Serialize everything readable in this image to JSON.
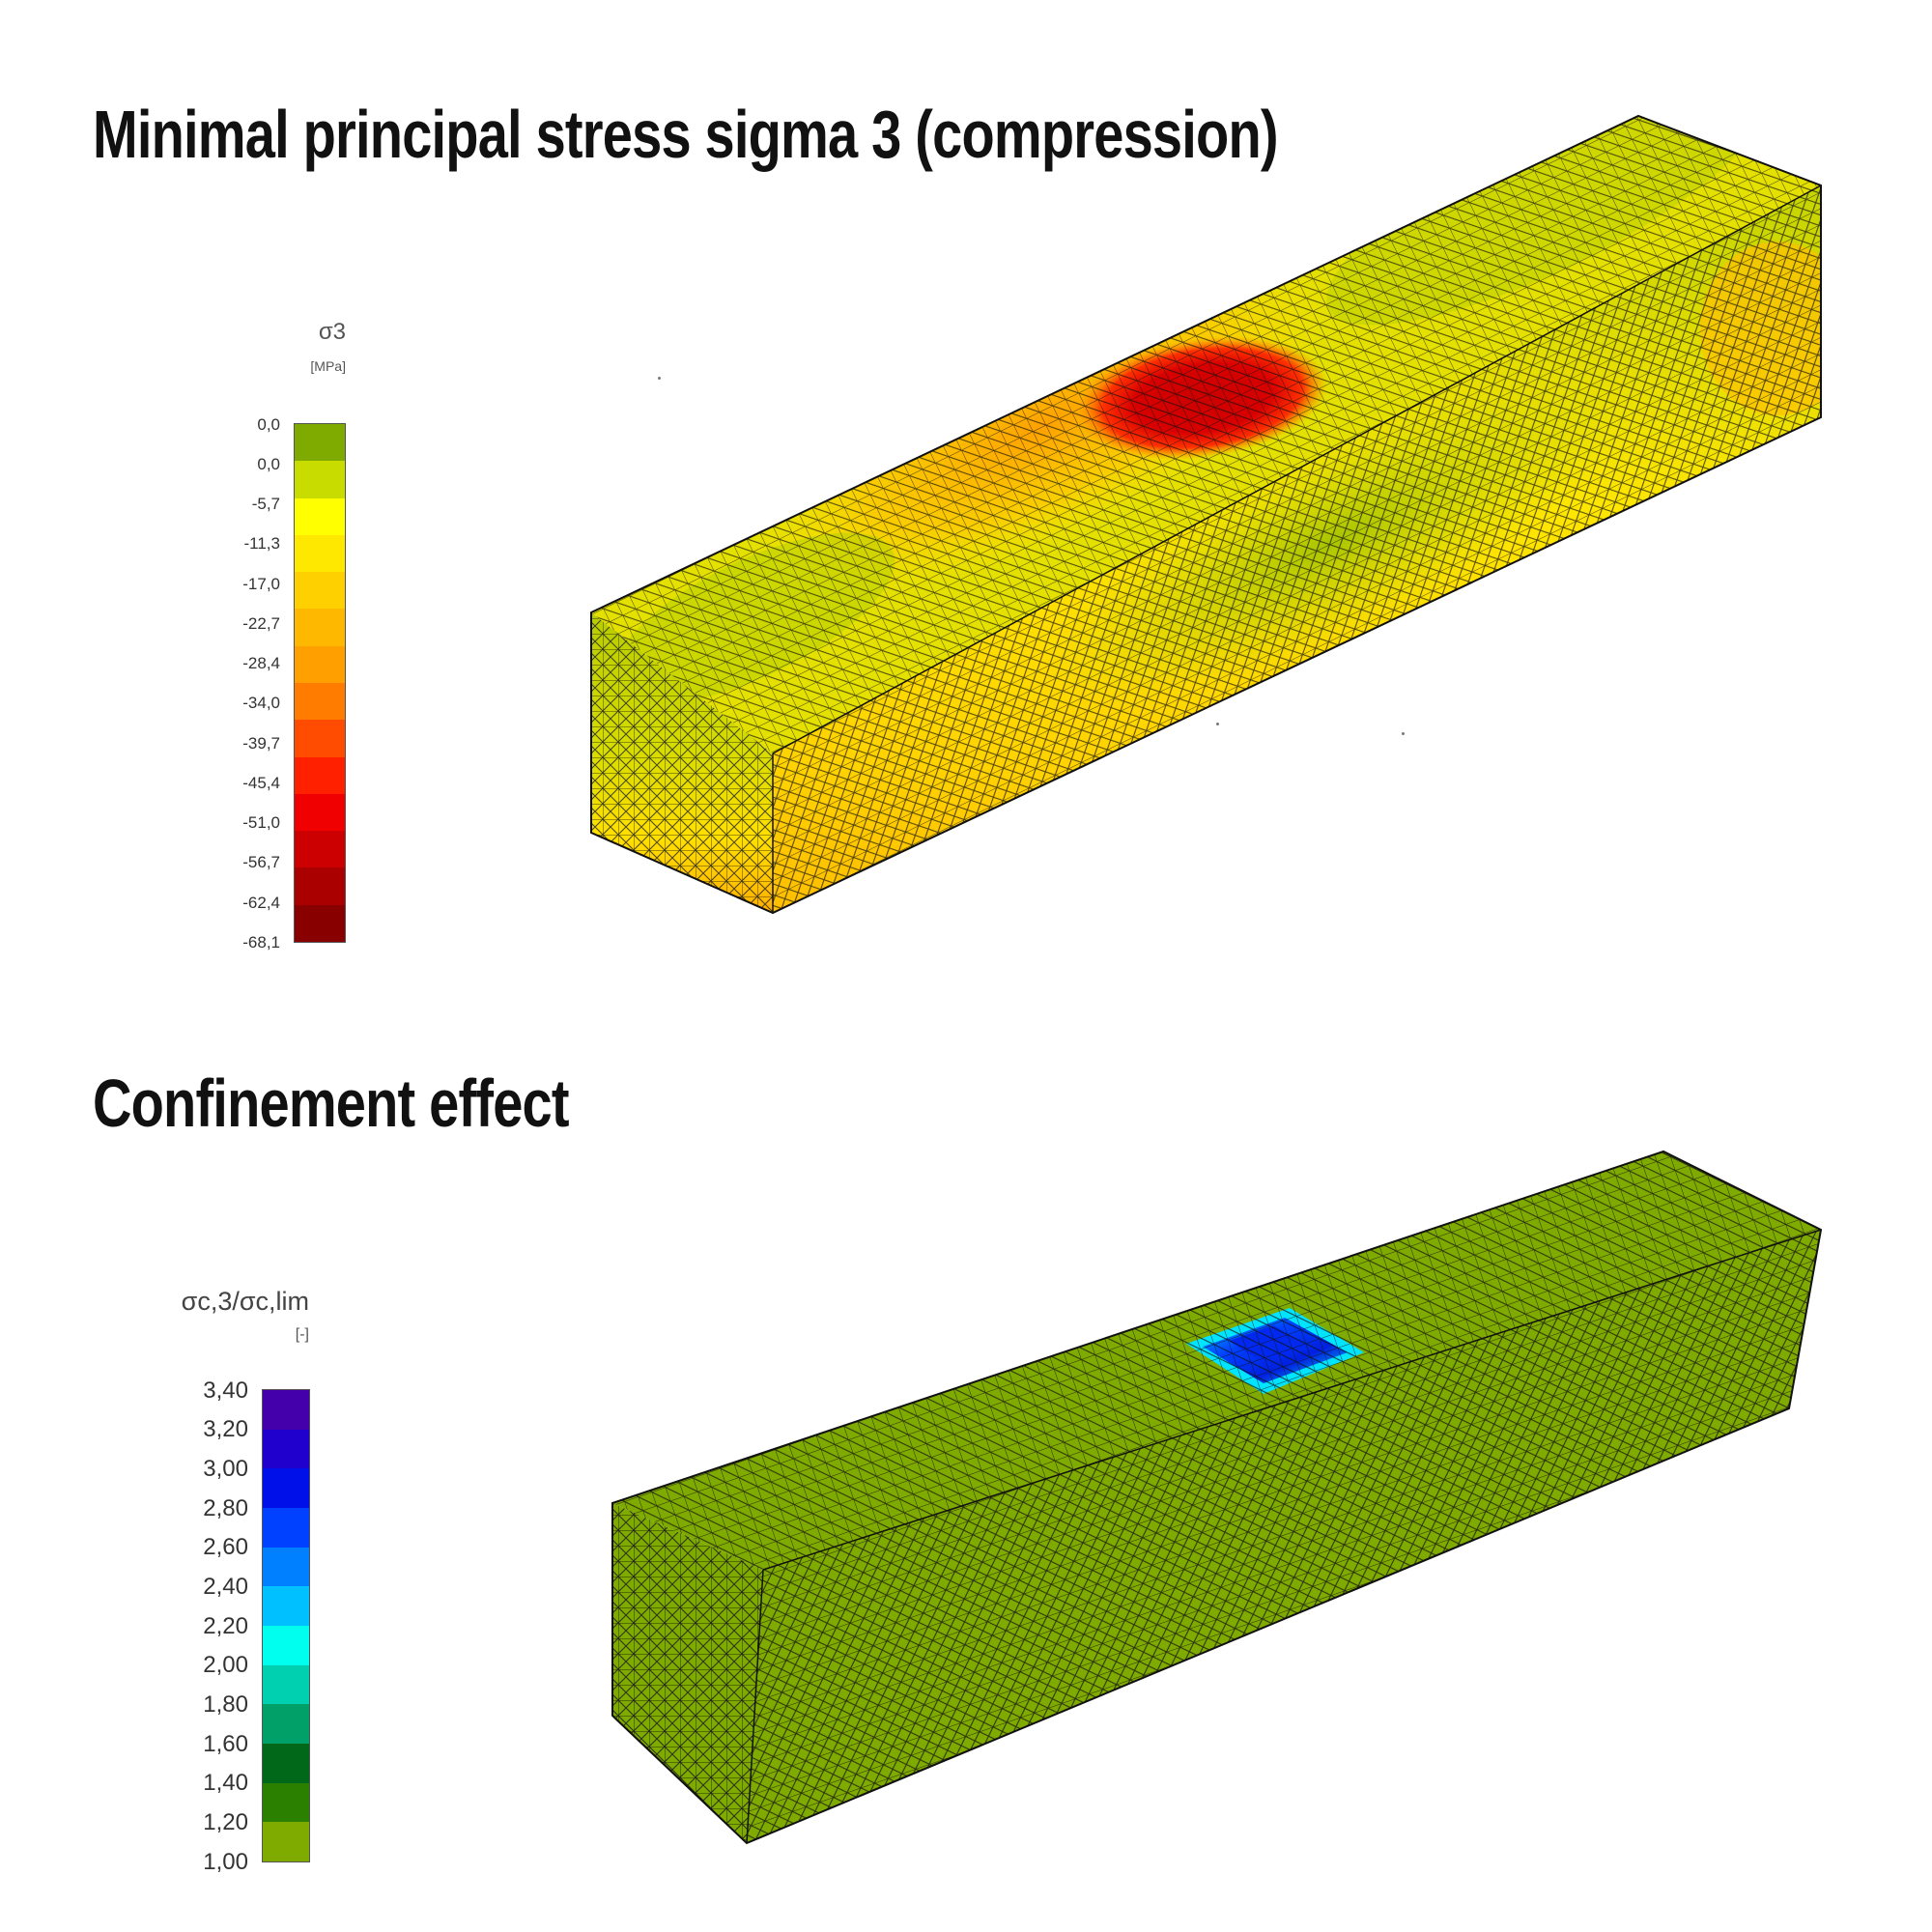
{
  "sections": [
    {
      "title": "Minimal principal stress sigma 3 (compression)",
      "legend": {
        "symbol": "σ3",
        "unit": "[MPa]",
        "ticks": [
          "0,0",
          "0,0",
          "-5,7",
          "-11,3",
          "-17,0",
          "-22,7",
          "-28,4",
          "-34,0",
          "-39,7",
          "-45,4",
          "-51,0",
          "-56,7",
          "-62,4",
          "-68,1"
        ],
        "colors": [
          "#7faa00",
          "#c8dc00",
          "#ffff00",
          "#ffe800",
          "#ffd000",
          "#ffb800",
          "#ffa000",
          "#ff7c00",
          "#ff4c00",
          "#ff2000",
          "#f00000",
          "#cc0000",
          "#aa0000",
          "#880000"
        ]
      }
    },
    {
      "title": "Confinement effect",
      "legend": {
        "symbol": "σc,3/σc,lim",
        "unit": "[-]",
        "ticks": [
          "3,40",
          "3,20",
          "3,00",
          "2,80",
          "2,60",
          "2,40",
          "2,20",
          "2,00",
          "1,80",
          "1,60",
          "1,40",
          "1,20",
          "1,00"
        ],
        "colors": [
          "#4400aa",
          "#2000cc",
          "#0010e8",
          "#0040ff",
          "#0080ff",
          "#00c0ff",
          "#00ffee",
          "#00d0b0",
          "#00a068",
          "#006818",
          "#2c8000",
          "#7faa00"
        ]
      }
    }
  ]
}
